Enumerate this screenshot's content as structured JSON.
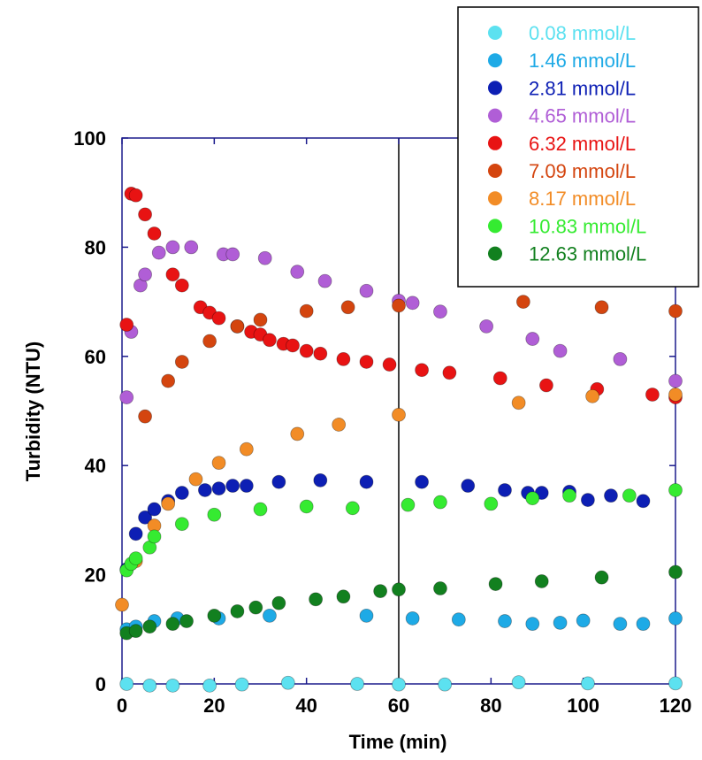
{
  "chart_data": {
    "type": "scatter",
    "xlabel": "Time (min)",
    "ylabel": "Turbidity (NTU)",
    "xlim": [
      0,
      120
    ],
    "ylim": [
      0,
      100
    ],
    "x_ticks": [
      0,
      20,
      40,
      60,
      80,
      100,
      120
    ],
    "y_ticks": [
      0,
      20,
      40,
      60,
      80,
      100
    ],
    "vertical_marker_x": 60,
    "grid": false,
    "legend_position": "top-right",
    "series": [
      {
        "name": "0.08 mmol/L",
        "color": "#5ce1f0",
        "points": [
          [
            1,
            0
          ],
          [
            6,
            -0.3
          ],
          [
            11,
            -0.3
          ],
          [
            19,
            -0.3
          ],
          [
            26,
            -0.1
          ],
          [
            36,
            0.2
          ],
          [
            51,
            0
          ],
          [
            60,
            -0.1
          ],
          [
            70,
            -0.1
          ],
          [
            86,
            0.3
          ],
          [
            101,
            0.1
          ],
          [
            120,
            0.1
          ]
        ]
      },
      {
        "name": "1.46 mmol/L",
        "color": "#1eaae6",
        "points": [
          [
            1,
            10
          ],
          [
            3,
            10.5
          ],
          [
            7,
            11.5
          ],
          [
            12,
            12
          ],
          [
            21,
            12
          ],
          [
            32,
            12.5
          ],
          [
            53,
            12.5
          ],
          [
            63,
            12
          ],
          [
            73,
            11.8
          ],
          [
            83,
            11.5
          ],
          [
            89,
            11
          ],
          [
            95,
            11.2
          ],
          [
            100,
            11.6
          ],
          [
            108,
            11
          ],
          [
            113,
            11
          ],
          [
            120,
            12
          ]
        ]
      },
      {
        "name": "2.81 mmol/L",
        "color": "#0d1fb4",
        "points": [
          [
            1,
            21
          ],
          [
            3,
            27.5
          ],
          [
            5,
            30.5
          ],
          [
            7,
            32
          ],
          [
            10,
            33.5
          ],
          [
            13,
            35
          ],
          [
            18,
            35.5
          ],
          [
            21,
            35.8
          ],
          [
            24,
            36.3
          ],
          [
            27,
            36.3
          ],
          [
            34,
            37
          ],
          [
            43,
            37.3
          ],
          [
            53,
            37
          ],
          [
            65,
            37
          ],
          [
            75,
            36.3
          ],
          [
            83,
            35.5
          ],
          [
            88,
            35
          ],
          [
            91,
            35
          ],
          [
            97,
            35.2
          ],
          [
            101,
            33.7
          ],
          [
            106,
            34.5
          ],
          [
            113,
            33.5
          ]
        ]
      },
      {
        "name": "4.65 mmol/L",
        "color": "#b05ed6",
        "points": [
          [
            1,
            52.5
          ],
          [
            2,
            64.5
          ],
          [
            4,
            73
          ],
          [
            5,
            75
          ],
          [
            8,
            79
          ],
          [
            11,
            80
          ],
          [
            15,
            80
          ],
          [
            22,
            78.7
          ],
          [
            24,
            78.7
          ],
          [
            31,
            78
          ],
          [
            38,
            75.5
          ],
          [
            44,
            73.8
          ],
          [
            53,
            72
          ],
          [
            60,
            70.2
          ],
          [
            63,
            69.8
          ],
          [
            69,
            68.2
          ],
          [
            79,
            65.5
          ],
          [
            89,
            63.2
          ],
          [
            95,
            61
          ],
          [
            108,
            59.5
          ],
          [
            120,
            55.5
          ]
        ]
      },
      {
        "name": "6.32 mmol/L",
        "color": "#e81313",
        "points": [
          [
            1,
            65.8
          ],
          [
            2,
            89.8
          ],
          [
            3,
            89.5
          ],
          [
            5,
            86
          ],
          [
            7,
            82.5
          ],
          [
            11,
            75
          ],
          [
            13,
            73
          ],
          [
            17,
            69
          ],
          [
            19,
            68
          ],
          [
            21,
            67
          ],
          [
            25,
            65.5
          ],
          [
            28,
            64.5
          ],
          [
            30,
            64
          ],
          [
            32,
            63
          ],
          [
            35,
            62.3
          ],
          [
            37,
            62
          ],
          [
            40,
            61
          ],
          [
            43,
            60.5
          ],
          [
            48,
            59.5
          ],
          [
            53,
            59
          ],
          [
            58,
            58.5
          ],
          [
            65,
            57.5
          ],
          [
            71,
            57
          ],
          [
            82,
            56
          ],
          [
            92,
            54.7
          ],
          [
            103,
            54
          ],
          [
            115,
            53
          ],
          [
            120,
            52.5
          ]
        ]
      },
      {
        "name": "7.09 mmol/L",
        "color": "#d4450f",
        "points": [
          [
            5,
            49
          ],
          [
            10,
            55.5
          ],
          [
            13,
            59
          ],
          [
            19,
            62.8
          ],
          [
            25,
            65.5
          ],
          [
            30,
            66.7
          ],
          [
            40,
            68.3
          ],
          [
            49,
            69
          ],
          [
            60,
            69.3
          ],
          [
            87,
            70
          ],
          [
            104,
            69
          ],
          [
            120,
            68.3
          ]
        ]
      },
      {
        "name": "8.17 mmol/L",
        "color": "#f28c26",
        "points": [
          [
            0,
            14.5
          ],
          [
            3,
            22.5
          ],
          [
            7,
            29
          ],
          [
            10,
            33
          ],
          [
            16,
            37.5
          ],
          [
            21,
            40.5
          ],
          [
            27,
            43
          ],
          [
            38,
            45.8
          ],
          [
            47,
            47.5
          ],
          [
            60,
            49.3
          ],
          [
            86,
            51.5
          ],
          [
            102,
            52.7
          ],
          [
            120,
            53
          ]
        ]
      },
      {
        "name": "10.83 mmol/L",
        "color": "#35eb31",
        "points": [
          [
            1,
            20.8
          ],
          [
            2,
            22
          ],
          [
            3,
            23
          ],
          [
            6,
            25
          ],
          [
            7,
            27
          ],
          [
            13,
            29.3
          ],
          [
            20,
            31
          ],
          [
            30,
            32
          ],
          [
            40,
            32.5
          ],
          [
            50,
            32.2
          ],
          [
            62,
            32.8
          ],
          [
            69,
            33.3
          ],
          [
            80,
            33
          ],
          [
            89,
            34
          ],
          [
            97,
            34.5
          ],
          [
            110,
            34.5
          ],
          [
            120,
            35.5
          ]
        ]
      },
      {
        "name": "12.63 mmol/L",
        "color": "#12801f",
        "points": [
          [
            1,
            9.3
          ],
          [
            3,
            9.7
          ],
          [
            6,
            10.5
          ],
          [
            11,
            11
          ],
          [
            14,
            11.5
          ],
          [
            20,
            12.5
          ],
          [
            25,
            13.3
          ],
          [
            29,
            14
          ],
          [
            34,
            14.8
          ],
          [
            42,
            15.5
          ],
          [
            48,
            16
          ],
          [
            56,
            17
          ],
          [
            60,
            17.3
          ],
          [
            69,
            17.5
          ],
          [
            81,
            18.3
          ],
          [
            91,
            18.8
          ],
          [
            104,
            19.5
          ],
          [
            120,
            20.5
          ]
        ]
      }
    ]
  }
}
